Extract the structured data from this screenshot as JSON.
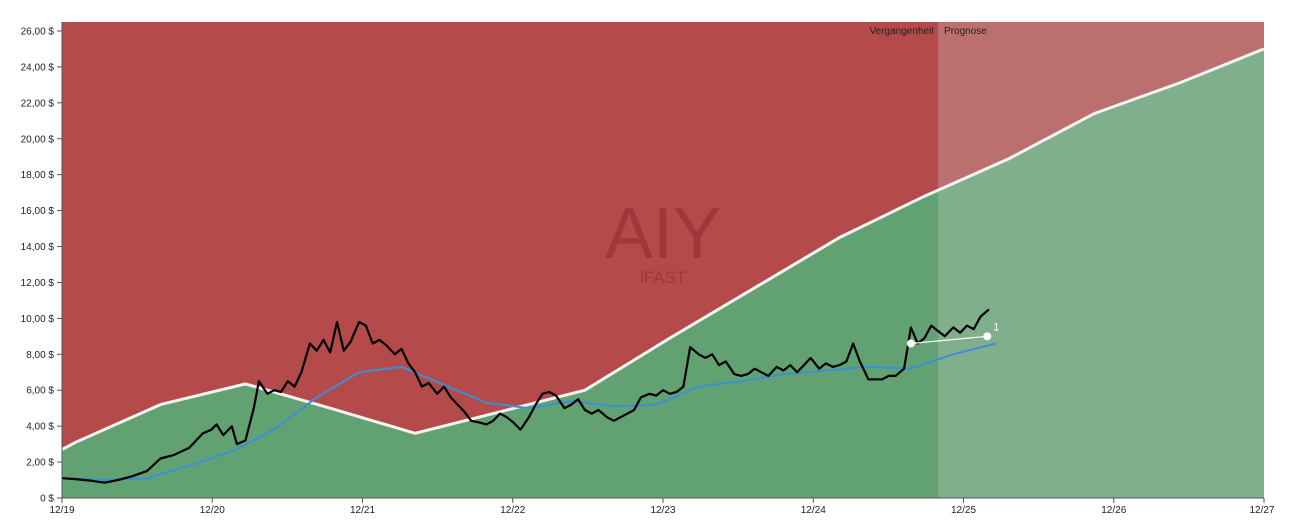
{
  "chart_data": {
    "type": "line",
    "watermark": {
      "ticker": "AIY",
      "name": "iFAST"
    },
    "regions": {
      "past": "Vergangenheit",
      "forecast": "Prognose"
    },
    "x_labels": [
      "12/19",
      "12/20",
      "12/21",
      "12/22",
      "12/23",
      "12/24",
      "12/25",
      "12/26",
      "12/27"
    ],
    "forecast_start": 2025.08,
    "ylim": [
      0,
      26.5
    ],
    "y_ticks": [
      0,
      2,
      4,
      6,
      8,
      10,
      12,
      14,
      16,
      18,
      20,
      22,
      24,
      26
    ],
    "y_tick_labels": [
      "0 $",
      "2,00 $",
      "4,00 $",
      "6,00 $",
      "8,00 $",
      "10,00 $",
      "12,00 $",
      "14,00 $",
      "16,00 $",
      "18,00 $",
      "20,00 $",
      "22,00 $",
      "24,00 $",
      "26,00 $"
    ],
    "colors": {
      "above": "#b44a4a",
      "below": "#62a272",
      "forecast_overlay": "#d2d2d2",
      "fair_value_line": "#f2f2f2",
      "price_line": "#000000",
      "average_line": "#3a8fd8",
      "target_line": "#ffffff"
    },
    "series": [
      {
        "role": "fair-value",
        "points": [
          [
            2019.92,
            2.7
          ],
          [
            2020.0,
            3.1
          ],
          [
            2020.5,
            5.2
          ],
          [
            2021.0,
            6.35
          ],
          [
            2021.5,
            5.0
          ],
          [
            2022.0,
            3.6
          ],
          [
            2022.5,
            4.8
          ],
          [
            2023.0,
            6.0
          ],
          [
            2023.5,
            8.9
          ],
          [
            2024.0,
            11.7
          ],
          [
            2024.5,
            14.5
          ],
          [
            2025.0,
            16.8
          ],
          [
            2025.5,
            18.9
          ],
          [
            2026.0,
            21.4
          ],
          [
            2026.5,
            23.1
          ],
          [
            2027.0,
            25.0
          ]
        ]
      },
      {
        "role": "price",
        "points": [
          [
            2019.92,
            1.1
          ],
          [
            2020.0,
            1.05
          ],
          [
            2020.05,
            1.0
          ],
          [
            2020.1,
            0.95
          ],
          [
            2020.17,
            0.85
          ],
          [
            2020.25,
            1.0
          ],
          [
            2020.33,
            1.2
          ],
          [
            2020.42,
            1.5
          ],
          [
            2020.5,
            2.2
          ],
          [
            2020.58,
            2.4
          ],
          [
            2020.67,
            2.8
          ],
          [
            2020.75,
            3.6
          ],
          [
            2020.8,
            3.8
          ],
          [
            2020.83,
            4.1
          ],
          [
            2020.87,
            3.5
          ],
          [
            2020.92,
            4.0
          ],
          [
            2020.95,
            3.0
          ],
          [
            2021.0,
            3.2
          ],
          [
            2021.05,
            5.0
          ],
          [
            2021.08,
            6.5
          ],
          [
            2021.13,
            5.8
          ],
          [
            2021.17,
            6.0
          ],
          [
            2021.21,
            5.9
          ],
          [
            2021.25,
            6.5
          ],
          [
            2021.29,
            6.2
          ],
          [
            2021.33,
            7.0
          ],
          [
            2021.38,
            8.6
          ],
          [
            2021.42,
            8.2
          ],
          [
            2021.46,
            8.8
          ],
          [
            2021.5,
            8.1
          ],
          [
            2021.54,
            9.8
          ],
          [
            2021.58,
            8.2
          ],
          [
            2021.62,
            8.7
          ],
          [
            2021.67,
            9.8
          ],
          [
            2021.71,
            9.6
          ],
          [
            2021.75,
            8.6
          ],
          [
            2021.79,
            8.8
          ],
          [
            2021.83,
            8.5
          ],
          [
            2021.88,
            8.0
          ],
          [
            2021.92,
            8.3
          ],
          [
            2021.96,
            7.5
          ],
          [
            2022.0,
            7.0
          ],
          [
            2022.04,
            6.2
          ],
          [
            2022.08,
            6.4
          ],
          [
            2022.13,
            5.8
          ],
          [
            2022.17,
            6.2
          ],
          [
            2022.21,
            5.6
          ],
          [
            2022.25,
            5.2
          ],
          [
            2022.29,
            4.8
          ],
          [
            2022.33,
            4.3
          ],
          [
            2022.38,
            4.2
          ],
          [
            2022.42,
            4.1
          ],
          [
            2022.46,
            4.3
          ],
          [
            2022.5,
            4.7
          ],
          [
            2022.54,
            4.5
          ],
          [
            2022.58,
            4.2
          ],
          [
            2022.62,
            3.8
          ],
          [
            2022.67,
            4.5
          ],
          [
            2022.71,
            5.2
          ],
          [
            2022.75,
            5.8
          ],
          [
            2022.79,
            5.9
          ],
          [
            2022.83,
            5.7
          ],
          [
            2022.88,
            5.0
          ],
          [
            2022.92,
            5.2
          ],
          [
            2022.96,
            5.5
          ],
          [
            2023.0,
            4.9
          ],
          [
            2023.04,
            4.7
          ],
          [
            2023.08,
            4.9
          ],
          [
            2023.13,
            4.5
          ],
          [
            2023.17,
            4.3
          ],
          [
            2023.21,
            4.5
          ],
          [
            2023.25,
            4.7
          ],
          [
            2023.29,
            4.9
          ],
          [
            2023.33,
            5.6
          ],
          [
            2023.38,
            5.8
          ],
          [
            2023.42,
            5.7
          ],
          [
            2023.46,
            6.0
          ],
          [
            2023.5,
            5.8
          ],
          [
            2023.54,
            5.9
          ],
          [
            2023.58,
            6.2
          ],
          [
            2023.62,
            8.4
          ],
          [
            2023.67,
            8.0
          ],
          [
            2023.71,
            7.8
          ],
          [
            2023.75,
            8.0
          ],
          [
            2023.79,
            7.4
          ],
          [
            2023.83,
            7.6
          ],
          [
            2023.88,
            6.9
          ],
          [
            2023.92,
            6.8
          ],
          [
            2023.96,
            6.9
          ],
          [
            2024.0,
            7.2
          ],
          [
            2024.04,
            7.0
          ],
          [
            2024.08,
            6.8
          ],
          [
            2024.13,
            7.3
          ],
          [
            2024.17,
            7.1
          ],
          [
            2024.21,
            7.4
          ],
          [
            2024.25,
            7.0
          ],
          [
            2024.29,
            7.4
          ],
          [
            2024.33,
            7.8
          ],
          [
            2024.38,
            7.2
          ],
          [
            2024.42,
            7.5
          ],
          [
            2024.46,
            7.3
          ],
          [
            2024.5,
            7.4
          ],
          [
            2024.54,
            7.6
          ],
          [
            2024.58,
            8.6
          ],
          [
            2024.62,
            7.6
          ],
          [
            2024.67,
            6.6
          ],
          [
            2024.71,
            6.6
          ],
          [
            2024.75,
            6.6
          ],
          [
            2024.79,
            6.8
          ],
          [
            2024.83,
            6.8
          ],
          [
            2024.88,
            7.2
          ],
          [
            2024.92,
            9.5
          ],
          [
            2024.96,
            8.6
          ],
          [
            2025.0,
            8.9
          ],
          [
            2025.04,
            9.6
          ],
          [
            2025.08,
            9.3
          ],
          [
            2025.12,
            9.0
          ],
          [
            2025.17,
            9.5
          ],
          [
            2025.21,
            9.2
          ],
          [
            2025.25,
            9.6
          ],
          [
            2025.29,
            9.4
          ],
          [
            2025.33,
            10.1
          ],
          [
            2025.38,
            10.5
          ]
        ]
      },
      {
        "role": "moving-average",
        "points": [
          [
            2019.92,
            1.1
          ],
          [
            2020.17,
            1.0
          ],
          [
            2020.42,
            1.1
          ],
          [
            2020.67,
            1.8
          ],
          [
            2020.92,
            2.6
          ],
          [
            2021.17,
            3.8
          ],
          [
            2021.42,
            5.6
          ],
          [
            2021.67,
            7.0
          ],
          [
            2021.92,
            7.3
          ],
          [
            2022.17,
            6.3
          ],
          [
            2022.42,
            5.3
          ],
          [
            2022.67,
            5.0
          ],
          [
            2022.92,
            5.4
          ],
          [
            2023.17,
            5.1
          ],
          [
            2023.42,
            5.2
          ],
          [
            2023.67,
            6.2
          ],
          [
            2023.92,
            6.5
          ],
          [
            2024.17,
            6.9
          ],
          [
            2024.42,
            7.1
          ],
          [
            2024.67,
            7.3
          ],
          [
            2024.92,
            7.2
          ],
          [
            2025.17,
            8.0
          ],
          [
            2025.42,
            8.6
          ]
        ]
      },
      {
        "role": "target",
        "label": "1",
        "points": [
          [
            2024.92,
            8.6
          ],
          [
            2025.37,
            9.0
          ]
        ]
      }
    ]
  }
}
